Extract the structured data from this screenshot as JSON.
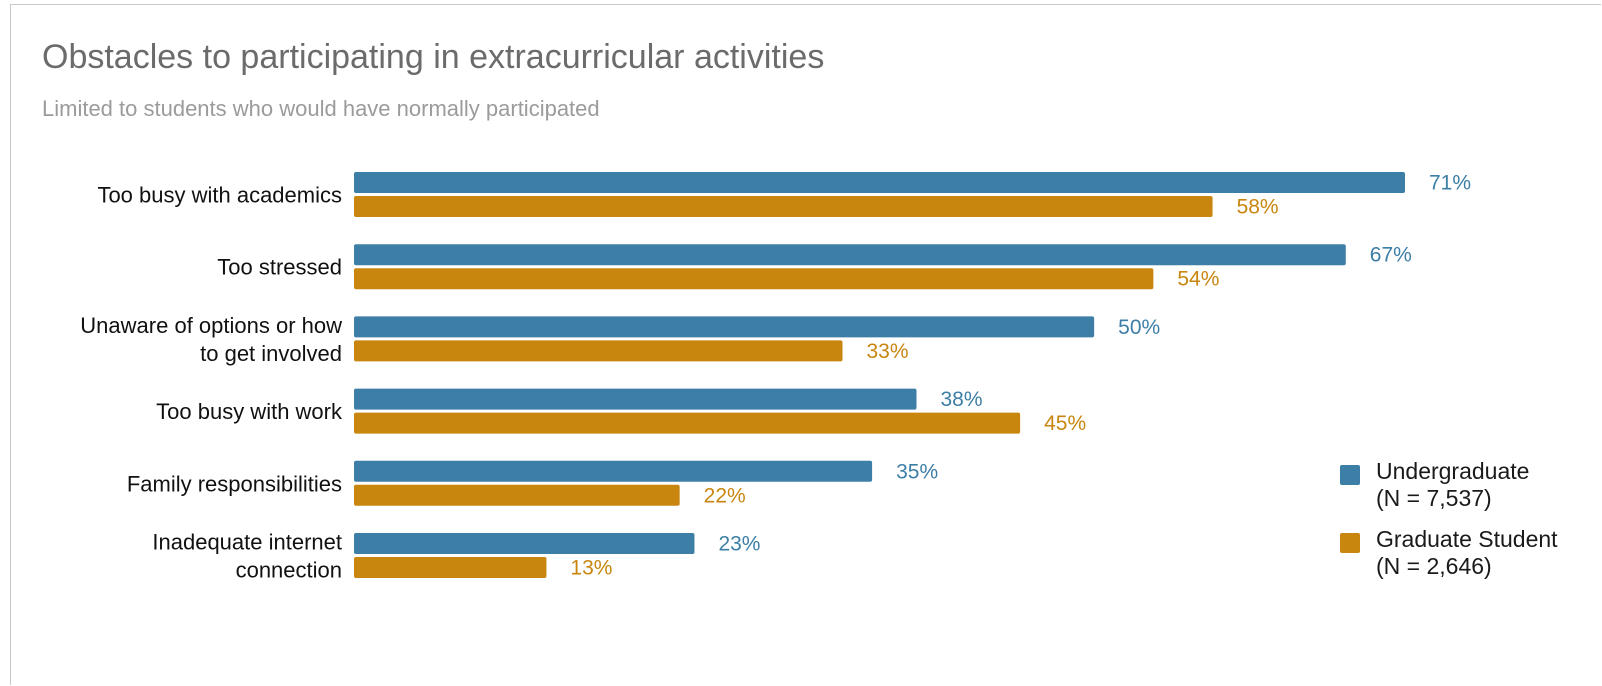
{
  "colors": {
    "undergraduate": "#3d7ea6",
    "graduate": "#c8860f"
  },
  "chart_data": {
    "type": "bar",
    "orientation": "horizontal",
    "title": "Obstacles to participating in extracurricular activities",
    "subtitle": "Limited to students who would have normally participated",
    "categories": [
      [
        "Too busy with academics"
      ],
      [
        "Too stressed"
      ],
      [
        "Unaware of options or how",
        "to get involved"
      ],
      [
        "Too busy with work"
      ],
      [
        "Family responsibilities"
      ],
      [
        "Inadequate internet",
        "connection"
      ]
    ],
    "series": [
      {
        "name": "Undergraduate",
        "legend_lines": [
          "Undergraduate",
          "(N = 7,537)"
        ],
        "values": [
          71,
          67,
          50,
          38,
          35,
          23
        ],
        "labels": [
          "71%",
          "67%",
          "50%",
          "38%",
          "35%",
          "23%"
        ]
      },
      {
        "name": "Graduate Student",
        "legend_lines": [
          "Graduate Student",
          "(N = 2,646)"
        ],
        "values": [
          58,
          54,
          33,
          45,
          22,
          13
        ],
        "labels": [
          "58%",
          "54%",
          "33%",
          "45%",
          "22%",
          "13%"
        ]
      }
    ],
    "value_unit": "%",
    "xlim": [
      0,
      100
    ],
    "grid": false,
    "legend_position": "right"
  }
}
